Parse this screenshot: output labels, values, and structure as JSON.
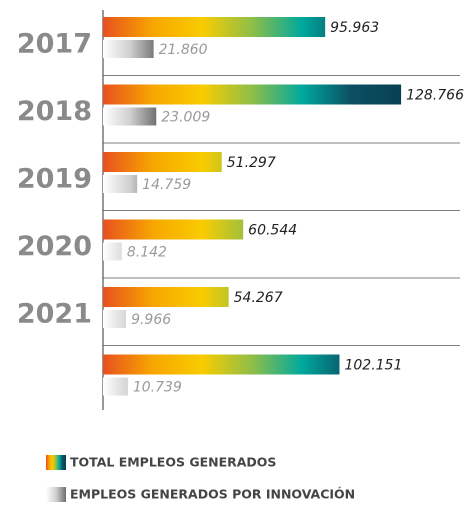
{
  "chart_data": {
    "type": "bar",
    "orientation": "horizontal",
    "categories": [
      "2017",
      "2018",
      "2019",
      "2020",
      "2021",
      null
    ],
    "series": [
      {
        "name": "TOTAL EMPLEOS GENERADOS",
        "colors": [
          "#e8501f",
          "#f7a600",
          "#f9cc00",
          "#8fbe48",
          "#00a99d",
          "#0b4f63",
          "#0a3f52"
        ],
        "values": [
          95963,
          128766,
          51297,
          60544,
          54267,
          102151
        ],
        "value_labels": [
          "95.963",
          "128.766",
          "51.297",
          "60.544",
          "54.267",
          "102.151"
        ]
      },
      {
        "name": "EMPLEOS GENERADOS POR INNOVACIÓN",
        "colors": [
          "#ffffff",
          "#d0d0d0",
          "#6e6e6e"
        ],
        "values": [
          21860,
          23009,
          14759,
          8142,
          9966,
          10739
        ],
        "value_labels": [
          "21.860",
          "23.009",
          "14.759",
          "8.142",
          "9.966",
          "10.739"
        ]
      }
    ]
  }
}
